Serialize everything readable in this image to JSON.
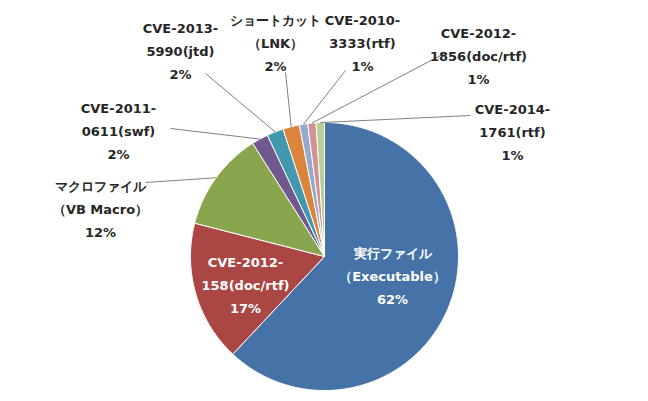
{
  "chart_data": {
    "type": "pie",
    "categories": [
      "実行ファイル\n（Executable）",
      "CVE-2012-\n158(doc/rtf)",
      "マクロファイル\n（VB Macro）",
      "CVE-2011-\n0611(swf)",
      "CVE-2013-\n5990(jtd)",
      "ショートカット\n（LNK）",
      "CVE-2010-\n3333(rtf)",
      "CVE-2012-\n1856(doc/rtf)",
      "CVE-2014-\n1761(rtf)"
    ],
    "values": [
      62,
      17,
      12,
      2,
      2,
      2,
      1,
      1,
      1
    ],
    "value_labels": [
      "62%",
      "17%",
      "12%",
      "2%",
      "2%",
      "2%",
      "1%",
      "1%",
      "1%"
    ],
    "colors": [
      "#4572A7",
      "#AA4643",
      "#89A54E",
      "#71588F",
      "#4198AF",
      "#DB843D",
      "#93A9CF",
      "#D19392",
      "#B9CD96"
    ],
    "data_labels": true
  }
}
